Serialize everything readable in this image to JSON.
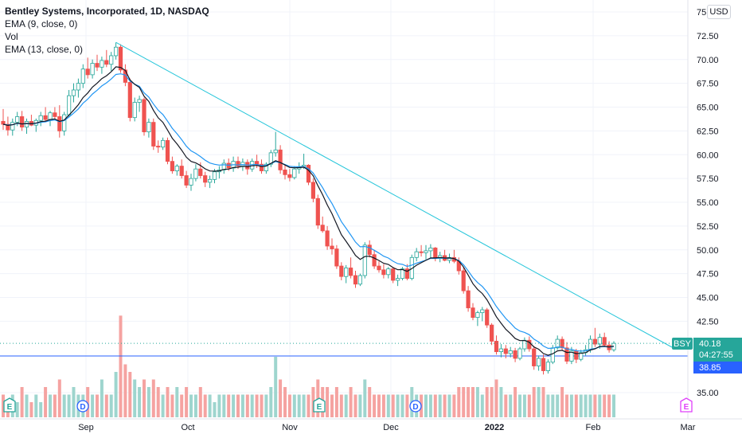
{
  "legend": {
    "title": "Bentley Systems, Incorporated, 1D, NASDAQ",
    "lines": [
      "EMA (9, close, 0)",
      "Vol",
      "EMA (13, close, 0)"
    ]
  },
  "currency": "USD",
  "price_labels": {
    "ticker": "BSY",
    "last_price": "40.18",
    "countdown": "04:27:55",
    "hline_price": "38.85"
  },
  "colors": {
    "up": "#26a69a",
    "down": "#ef5350",
    "ema9": "#131722",
    "ema13": "#2196f3",
    "trendline": "#26c6da",
    "hline": "#2962ff",
    "vol_up": "#9ed5ce",
    "vol_down": "#f5a3a1"
  },
  "chart_data": {
    "type": "candlestick",
    "title": "Bentley Systems, Incorporated, 1D, NASDAQ",
    "y_axis": {
      "ticks": [
        "75.00",
        "72.50",
        "70.00",
        "67.50",
        "65.00",
        "62.50",
        "60.00",
        "57.50",
        "55.00",
        "52.50",
        "50.00",
        "47.50",
        "45.00",
        "42.50",
        "35.00"
      ],
      "range": [
        33.8,
        76.3
      ]
    },
    "x_axis": {
      "ticks": [
        "Sep",
        "Oct",
        "Nov",
        "Dec",
        "2022",
        "Feb",
        "Mar"
      ]
    },
    "candles": [
      [
        63.5,
        64.8,
        62.6,
        63.2
      ],
      [
        63.2,
        64.0,
        62.0,
        62.6
      ],
      [
        62.6,
        63.8,
        62.0,
        63.4
      ],
      [
        63.4,
        64.5,
        63.0,
        64.0
      ],
      [
        64.0,
        64.6,
        62.5,
        62.9
      ],
      [
        62.9,
        63.8,
        62.2,
        63.5
      ],
      [
        63.5,
        64.2,
        63.0,
        63.1
      ],
      [
        63.1,
        63.8,
        62.4,
        63.6
      ],
      [
        63.6,
        64.5,
        63.0,
        64.1
      ],
      [
        64.1,
        65.0,
        63.5,
        63.7
      ],
      [
        63.7,
        64.6,
        63.0,
        64.4
      ],
      [
        64.4,
        65.0,
        63.8,
        64.0
      ],
      [
        64.0,
        65.2,
        61.8,
        62.5
      ],
      [
        62.5,
        64.5,
        62.0,
        64.2
      ],
      [
        64.2,
        66.8,
        64.0,
        66.2
      ],
      [
        66.2,
        67.5,
        65.5,
        66.8
      ],
      [
        66.8,
        68.0,
        66.0,
        67.5
      ],
      [
        67.5,
        69.5,
        67.0,
        69.0
      ],
      [
        69.0,
        70.2,
        68.0,
        68.4
      ],
      [
        68.4,
        70.0,
        68.0,
        69.6
      ],
      [
        69.6,
        70.5,
        68.8,
        69.2
      ],
      [
        69.2,
        70.3,
        68.5,
        69.9
      ],
      [
        69.9,
        71.0,
        69.2,
        69.5
      ],
      [
        69.5,
        70.8,
        68.8,
        70.4
      ],
      [
        70.4,
        71.8,
        70.0,
        71.3
      ],
      [
        71.3,
        71.6,
        68.6,
        68.9
      ],
      [
        68.9,
        69.5,
        67.2,
        67.6
      ],
      [
        67.6,
        68.0,
        63.5,
        63.9
      ],
      [
        63.9,
        66.0,
        63.5,
        65.5
      ],
      [
        65.5,
        66.2,
        64.5,
        65.8
      ],
      [
        65.8,
        66.0,
        62.0,
        62.4
      ],
      [
        62.4,
        63.8,
        61.8,
        63.4
      ],
      [
        63.4,
        63.8,
        60.5,
        60.9
      ],
      [
        60.9,
        61.5,
        60.2,
        60.8
      ],
      [
        60.8,
        61.8,
        60.5,
        61.5
      ],
      [
        61.5,
        61.8,
        59.0,
        59.3
      ],
      [
        59.3,
        59.8,
        58.0,
        58.3
      ],
      [
        58.3,
        59.0,
        57.8,
        58.8
      ],
      [
        58.8,
        59.5,
        57.5,
        57.8
      ],
      [
        57.8,
        58.3,
        56.5,
        56.8
      ],
      [
        56.8,
        58.0,
        56.2,
        57.5
      ],
      [
        57.5,
        59.0,
        57.2,
        58.5
      ],
      [
        58.5,
        59.2,
        57.5,
        57.8
      ],
      [
        57.8,
        58.2,
        56.6,
        57.1
      ],
      [
        57.1,
        57.8,
        56.5,
        57.4
      ],
      [
        57.4,
        58.5,
        57.0,
        58.2
      ],
      [
        58.2,
        58.8,
        57.5,
        58.4
      ],
      [
        58.4,
        59.5,
        58.0,
        59.1
      ],
      [
        59.1,
        59.6,
        58.3,
        58.6
      ],
      [
        58.6,
        59.8,
        58.2,
        59.3
      ],
      [
        59.3,
        59.8,
        58.5,
        58.8
      ],
      [
        58.8,
        59.6,
        58.3,
        59.2
      ],
      [
        59.2,
        59.5,
        57.9,
        58.5
      ],
      [
        58.5,
        59.6,
        58.2,
        59.3
      ],
      [
        59.3,
        60.0,
        58.6,
        59.0
      ],
      [
        59.0,
        59.5,
        58.0,
        58.3
      ],
      [
        58.3,
        59.2,
        58.0,
        59.0
      ],
      [
        59.0,
        60.5,
        58.7,
        60.2
      ],
      [
        60.2,
        62.4,
        59.8,
        60.5
      ],
      [
        60.5,
        61.0,
        58.0,
        58.4
      ],
      [
        58.4,
        59.0,
        57.4,
        57.9
      ],
      [
        57.9,
        58.5,
        57.2,
        57.6
      ],
      [
        57.6,
        58.8,
        57.4,
        58.5
      ],
      [
        58.5,
        59.2,
        58.0,
        58.7
      ],
      [
        58.7,
        60.1,
        58.5,
        58.9
      ],
      [
        58.9,
        59.0,
        56.8,
        57.1
      ],
      [
        57.1,
        57.5,
        55.0,
        55.4
      ],
      [
        55.4,
        55.8,
        52.2,
        52.6
      ],
      [
        52.6,
        53.5,
        51.8,
        52.0
      ],
      [
        52.0,
        52.5,
        50.0,
        50.4
      ],
      [
        50.4,
        51.2,
        49.5,
        50.1
      ],
      [
        50.1,
        50.5,
        48.0,
        48.3
      ],
      [
        48.3,
        48.7,
        46.8,
        47.2
      ],
      [
        47.2,
        48.4,
        46.5,
        48.1
      ],
      [
        48.1,
        49.2,
        47.0,
        47.3
      ],
      [
        47.3,
        47.8,
        46.0,
        46.4
      ],
      [
        46.4,
        47.5,
        46.2,
        47.3
      ],
      [
        47.3,
        50.8,
        47.0,
        50.5
      ],
      [
        50.5,
        51.0,
        49.2,
        49.5
      ],
      [
        49.5,
        50.0,
        48.0,
        48.3
      ],
      [
        48.3,
        48.8,
        47.6,
        47.9
      ],
      [
        47.9,
        48.5,
        47.0,
        47.4
      ],
      [
        47.4,
        48.2,
        47.0,
        48.0
      ],
      [
        48.0,
        48.2,
        46.5,
        46.8
      ],
      [
        46.8,
        47.4,
        46.2,
        47.0
      ],
      [
        47.0,
        48.2,
        46.8,
        48.0
      ],
      [
        48.0,
        48.5,
        46.8,
        47.0
      ],
      [
        47.0,
        49.5,
        46.8,
        49.2
      ],
      [
        49.2,
        50.2,
        48.8,
        49.8
      ],
      [
        49.8,
        50.5,
        49.3,
        49.7
      ],
      [
        49.7,
        50.5,
        49.0,
        49.9
      ],
      [
        49.9,
        50.6,
        49.2,
        50.2
      ],
      [
        50.2,
        50.3,
        48.8,
        49.1
      ],
      [
        49.1,
        49.8,
        48.7,
        49.4
      ],
      [
        49.4,
        50.0,
        48.8,
        48.9
      ],
      [
        48.9,
        49.6,
        48.6,
        49.2
      ],
      [
        49.2,
        50.0,
        48.6,
        48.8
      ],
      [
        48.8,
        49.2,
        47.4,
        47.8
      ],
      [
        47.8,
        48.2,
        45.4,
        45.7
      ],
      [
        45.7,
        46.2,
        43.5,
        43.9
      ],
      [
        43.9,
        44.4,
        42.6,
        42.9
      ],
      [
        42.9,
        43.6,
        42.0,
        43.4
      ],
      [
        43.4,
        44.0,
        42.5,
        43.7
      ],
      [
        43.7,
        43.9,
        41.8,
        42.1
      ],
      [
        42.1,
        42.3,
        40.0,
        40.4
      ],
      [
        40.4,
        41.0,
        39.0,
        39.3
      ],
      [
        39.3,
        40.1,
        38.7,
        39.6
      ],
      [
        39.6,
        40.0,
        38.6,
        39.1
      ],
      [
        39.1,
        39.8,
        38.7,
        39.4
      ],
      [
        39.4,
        39.7,
        38.2,
        38.6
      ],
      [
        38.6,
        39.8,
        38.4,
        39.6
      ],
      [
        39.6,
        40.8,
        39.3,
        40.5
      ],
      [
        40.5,
        40.9,
        39.3,
        39.6
      ],
      [
        39.6,
        39.9,
        37.4,
        37.8
      ],
      [
        37.8,
        38.9,
        37.3,
        38.6
      ],
      [
        38.6,
        39.0,
        36.9,
        37.3
      ],
      [
        37.3,
        38.5,
        37.0,
        38.2
      ],
      [
        38.2,
        40.0,
        38.0,
        39.7
      ],
      [
        39.7,
        41.0,
        39.5,
        40.6
      ],
      [
        40.6,
        40.9,
        39.4,
        39.7
      ],
      [
        39.7,
        40.3,
        38.0,
        38.3
      ],
      [
        38.3,
        39.8,
        38.0,
        39.4
      ],
      [
        39.4,
        39.6,
        38.1,
        38.5
      ],
      [
        38.5,
        39.5,
        38.3,
        39.2
      ],
      [
        39.2,
        40.0,
        38.9,
        39.5
      ],
      [
        39.5,
        41.0,
        39.2,
        40.6
      ],
      [
        40.6,
        41.8,
        39.8,
        40.1
      ],
      [
        40.1,
        41.2,
        39.6,
        40.8
      ],
      [
        40.8,
        41.3,
        39.9,
        40.0
      ],
      [
        40.0,
        40.4,
        39.2,
        39.5
      ],
      [
        39.5,
        40.4,
        39.3,
        40.18
      ]
    ],
    "volume": [
      3,
      2,
      3,
      2,
      4,
      3,
      2,
      3,
      2,
      4,
      3,
      3,
      5,
      3,
      3,
      4,
      3,
      3,
      4,
      3,
      3,
      5,
      3,
      3,
      6,
      12,
      7,
      6,
      5,
      4,
      5,
      4,
      5,
      4,
      3,
      4,
      3,
      4,
      3,
      4,
      3,
      3,
      4,
      3,
      3,
      2,
      3,
      3,
      3,
      3,
      3,
      3,
      3,
      3,
      3,
      3,
      3,
      4,
      8,
      5,
      4,
      3,
      3,
      3,
      3,
      3,
      4,
      5,
      4,
      4,
      3,
      4,
      3,
      3,
      4,
      3,
      3,
      5,
      4,
      3,
      3,
      3,
      3,
      3,
      3,
      3,
      3,
      4,
      3,
      3,
      3,
      3,
      3,
      3,
      3,
      3,
      3,
      4,
      4,
      4,
      4,
      4,
      3,
      4,
      4,
      5,
      4,
      3,
      3,
      4,
      3,
      3,
      3,
      4,
      4,
      4,
      3,
      3,
      3,
      4,
      3,
      3,
      3,
      3,
      3,
      3,
      3,
      3,
      3,
      3,
      3,
      3,
      3,
      4
    ],
    "series": [
      {
        "name": "EMA (9, close, 0)"
      },
      {
        "name": "EMA (13, close, 0)"
      },
      {
        "name": "Vol"
      }
    ],
    "trendline": {
      "from": [
        24,
        71.8
      ],
      "to": [
        133,
        40.3
      ]
    },
    "hline": 38.85,
    "grid": true
  }
}
